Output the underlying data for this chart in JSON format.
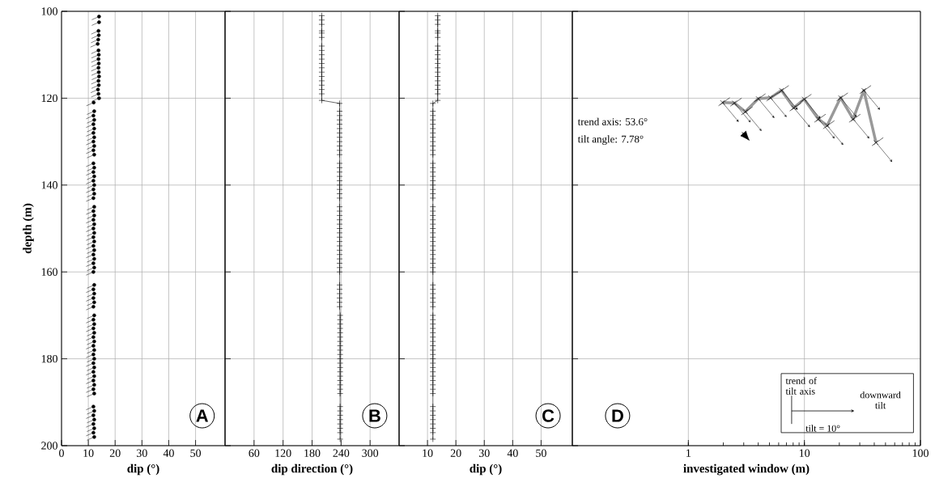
{
  "chart_data": [
    {
      "type": "scatter",
      "xlabel": "dip (°)",
      "ylabel": "depth (m)",
      "xlim": [
        0,
        61
      ],
      "xticks": [
        0,
        10,
        20,
        30,
        40,
        50
      ],
      "ylim": [
        200,
        100
      ],
      "yticks": [
        100,
        120,
        140,
        160,
        180,
        200
      ],
      "grid": true,
      "marker": "circle",
      "annotations": [
        "A"
      ],
      "series": [
        {
          "color": "#000000",
          "x": [
            14.0,
            14.0,
            13.8,
            13.9,
            13.7,
            13.5,
            13.8,
            13.9,
            13.8,
            13.9,
            13.8,
            13.9,
            14.0,
            13.8,
            13.9,
            13.6,
            13.8,
            14.0,
            12.0,
            12.2,
            11.9,
            12.2,
            11.9,
            12.2,
            11.9,
            12.2,
            11.9,
            12.2,
            11.9,
            12.2,
            11.9,
            12.2,
            11.9,
            12.2,
            11.9,
            12.2,
            11.9,
            12.2,
            11.9,
            12.2,
            11.9,
            12.2,
            11.9,
            12.2,
            11.9,
            12.2,
            11.9,
            12.2,
            11.9,
            12.2,
            11.9,
            12.2,
            11.9,
            12.2,
            11.9,
            12.2,
            11.9,
            12.2,
            11.9,
            12.2,
            11.9,
            12.2,
            11.9,
            12.2,
            11.9,
            12.2,
            11.9,
            12.2,
            11.9,
            12.2,
            11.9,
            12.2,
            11.9,
            12.2,
            11.9,
            12.2,
            11.9,
            12.2,
            11.9,
            12.2,
            11.9,
            12.2,
            11.9,
            12.2,
            11.9,
            12.2,
            11.9,
            12.2
          ],
          "values": [
            101.2,
            102.5,
            104.5,
            105.5,
            106.5,
            107.5,
            109,
            110,
            111,
            112,
            113,
            114,
            115,
            116,
            117,
            118,
            119,
            120,
            121,
            123,
            124,
            125,
            126,
            127,
            128,
            129,
            130,
            131,
            132,
            133,
            135,
            136,
            137,
            138,
            139,
            140,
            141,
            142,
            143,
            145,
            146,
            147,
            148,
            149,
            150,
            151,
            152,
            153,
            154,
            155,
            156,
            157,
            158,
            159,
            160,
            163,
            164,
            165,
            166,
            167,
            168,
            170,
            171,
            172,
            173,
            174,
            175,
            176,
            177,
            178,
            179,
            180,
            181,
            182,
            183,
            184,
            185,
            186,
            187,
            188,
            191,
            192,
            193,
            194,
            195,
            196,
            197,
            198
          ]
        }
      ]
    },
    {
      "type": "line",
      "xlabel": "dip direction (°)",
      "xlim": [
        0,
        360
      ],
      "xticks": [
        60,
        120,
        180,
        240,
        300
      ],
      "ylim": [
        200,
        100
      ],
      "yticks": [
        100,
        120,
        140,
        160,
        180,
        200
      ],
      "tick_labels": "x",
      "grid": true,
      "marker": "cross",
      "line_style": "solid",
      "annotations": [
        "B"
      ],
      "series": [
        {
          "color": "#000000",
          "x": [
            200,
            200,
            200,
            200,
            200,
            200,
            200,
            200,
            200,
            200,
            200,
            200,
            200,
            200,
            200,
            200,
            200,
            200,
            200,
            237,
            237,
            237,
            237,
            237,
            237,
            237,
            237,
            237,
            237,
            237,
            237,
            237,
            237,
            237,
            237,
            237,
            237,
            237,
            237,
            237,
            237,
            237,
            237,
            237,
            237,
            237,
            237,
            237,
            237,
            237,
            237,
            237,
            237,
            237,
            237,
            237,
            237,
            237,
            237,
            237,
            237,
            237,
            238,
            238,
            238,
            238,
            238,
            238,
            238,
            238,
            238,
            238,
            238,
            238,
            238,
            238,
            238,
            238,
            238,
            238,
            238,
            238,
            238,
            238,
            238,
            238,
            238,
            238,
            238
          ],
          "values": [
            101,
            102,
            103,
            104.5,
            105,
            106,
            108,
            109,
            110,
            111,
            112,
            113,
            114,
            115,
            116,
            117,
            118,
            119,
            120.5,
            121.2,
            123,
            124,
            125,
            126,
            127,
            128,
            129,
            130,
            131,
            132,
            133,
            135,
            136,
            137,
            138,
            139,
            140,
            141,
            142,
            143,
            145,
            146,
            147,
            148,
            149,
            150,
            151,
            152,
            153,
            154,
            155,
            156,
            157,
            158,
            159,
            160,
            163,
            164,
            165,
            166,
            167,
            168,
            170,
            171,
            172,
            173,
            174,
            175,
            176,
            177,
            178,
            179,
            180,
            181,
            182,
            183,
            184,
            185,
            186,
            187,
            188,
            191,
            192,
            193,
            194,
            195,
            196,
            197,
            198.5
          ]
        }
      ]
    },
    {
      "type": "line",
      "xlabel": "dip (°)",
      "xlim": [
        0,
        61
      ],
      "xticks": [
        10,
        20,
        30,
        40,
        50
      ],
      "ylim": [
        200,
        100
      ],
      "yticks": [
        100,
        120,
        140,
        160,
        180,
        200
      ],
      "tick_labels": "x",
      "grid": true,
      "marker": "cross",
      "line_style": "solid",
      "annotations": [
        "C"
      ],
      "series": [
        {
          "color": "#000000",
          "x": [
            13.6,
            13.6,
            13.6,
            13.6,
            13.6,
            13.6,
            13.6,
            13.6,
            13.6,
            13.6,
            13.6,
            13.6,
            13.6,
            13.6,
            13.6,
            13.6,
            13.6,
            13.6,
            13.6,
            11.9,
            11.9,
            11.9,
            11.9,
            11.9,
            11.9,
            11.9,
            11.9,
            11.9,
            11.9,
            11.9,
            11.9,
            11.9,
            11.9,
            11.9,
            11.9,
            11.9,
            11.9,
            11.9,
            11.9,
            11.9,
            11.9,
            11.9,
            11.9,
            11.9,
            11.9,
            11.9,
            11.9,
            11.9,
            11.9,
            11.9,
            11.9,
            11.9,
            11.9,
            11.9,
            11.9,
            11.9,
            11.9,
            11.9,
            11.9,
            11.9,
            11.9,
            11.9,
            11.9,
            11.9,
            11.9,
            11.9,
            11.9,
            11.9,
            11.9,
            11.9,
            11.9,
            11.9,
            11.9,
            11.9,
            11.9,
            11.9,
            11.9,
            11.9,
            11.9,
            11.9,
            11.9,
            11.9,
            11.9,
            11.9,
            11.9,
            11.9,
            11.9,
            11.9,
            11.9
          ],
          "values": [
            101,
            102,
            103,
            104.5,
            105,
            106,
            108,
            109,
            110,
            111,
            112,
            113,
            114,
            115,
            116,
            117,
            118,
            119,
            120.5,
            121.2,
            123,
            124,
            125,
            126,
            127,
            128,
            129,
            130,
            131,
            132,
            133,
            135,
            136,
            137,
            138,
            139,
            140,
            141,
            142,
            143,
            145,
            146,
            147,
            148,
            149,
            150,
            151,
            152,
            153,
            154,
            155,
            156,
            157,
            158,
            159,
            160,
            163,
            164,
            165,
            166,
            167,
            168,
            170,
            171,
            172,
            173,
            174,
            175,
            176,
            177,
            178,
            179,
            180,
            181,
            182,
            183,
            184,
            185,
            186,
            187,
            188,
            191,
            192,
            193,
            194,
            195,
            196,
            197,
            198.5
          ]
        }
      ]
    },
    {
      "type": "scatter",
      "xlabel": "investigated window (m)",
      "log": "x",
      "xlim": [
        0.1,
        100
      ],
      "xticks": [
        1,
        10,
        100
      ],
      "ylim": [
        200,
        100
      ],
      "yticks": [
        100,
        120,
        140,
        160,
        180,
        200
      ],
      "tick_labels": "x",
      "grid": true,
      "marker": "cross",
      "annotations": [
        "D",
        "trend axis: 53.6°",
        "tilt angle: 7.78°",
        "trend of tilt axis",
        "downward tilt",
        "tilt = 10°"
      ],
      "series": [
        {
          "type": "line",
          "marker": "none",
          "color": "#999999",
          "x": [
            1.97,
            2.49,
            3.1,
            4.0,
            5.1,
            6.35,
            8.1,
            9.95,
            13.2,
            15.7,
            20.5,
            26.3,
            32.5,
            41.4
          ],
          "values": [
            121.0,
            121.1,
            123.1,
            120.1,
            119.9,
            118.2,
            122.2,
            120.2,
            124.8,
            126.3,
            119.9,
            124.8,
            118.2,
            130.2
          ]
        },
        {
          "color": "#000000",
          "x": [
            1.97,
            2.49,
            3.1,
            4.0,
            5.1,
            6.35,
            8.1,
            9.95,
            13.2,
            15.7,
            20.5,
            26.3,
            32.5,
            41.4
          ],
          "values": [
            121.0,
            121.1,
            123.1,
            120.1,
            119.9,
            118.2,
            122.2,
            120.2,
            124.8,
            126.3,
            119.9,
            124.8,
            118.2,
            130.2
          ]
        }
      ]
    }
  ]
}
